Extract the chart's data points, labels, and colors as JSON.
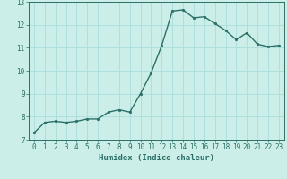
{
  "x": [
    0,
    1,
    2,
    3,
    4,
    5,
    6,
    7,
    8,
    9,
    10,
    11,
    12,
    13,
    14,
    15,
    16,
    17,
    18,
    19,
    20,
    21,
    22,
    23
  ],
  "y": [
    7.3,
    7.75,
    7.8,
    7.75,
    7.8,
    7.9,
    7.9,
    8.2,
    8.3,
    8.2,
    9.0,
    9.9,
    11.1,
    12.6,
    12.65,
    12.3,
    12.35,
    12.05,
    11.75,
    11.35,
    11.65,
    11.15,
    11.05,
    11.1
  ],
  "line_color": "#2a7068",
  "marker_color": "#2a7068",
  "bg_color": "#cceee8",
  "grid_color": "#aaddda",
  "axis_color": "#2a7068",
  "xlabel": "Humidex (Indice chaleur)",
  "ylim": [
    7,
    13
  ],
  "xlim": [
    -0.5,
    23.5
  ],
  "yticks": [
    7,
    8,
    9,
    10,
    11,
    12,
    13
  ],
  "xticks": [
    0,
    1,
    2,
    3,
    4,
    5,
    6,
    7,
    8,
    9,
    10,
    11,
    12,
    13,
    14,
    15,
    16,
    17,
    18,
    19,
    20,
    21,
    22,
    23
  ],
  "xtick_labels": [
    "0",
    "1",
    "2",
    "3",
    "4",
    "5",
    "6",
    "7",
    "8",
    "9",
    "10",
    "11",
    "12",
    "13",
    "14",
    "15",
    "16",
    "17",
    "18",
    "19",
    "20",
    "21",
    "22",
    "23"
  ],
  "tick_fontsize": 5.5,
  "xlabel_fontsize": 6.5,
  "line_width": 1.0,
  "marker_size": 2.0
}
